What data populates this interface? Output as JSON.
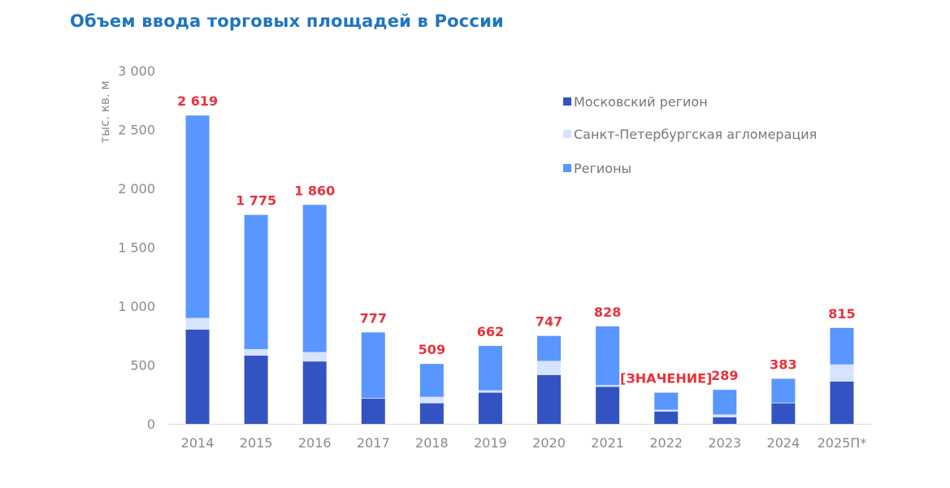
{
  "title": "Объем ввода торговых площадей в России",
  "chart_data": {
    "type": "bar",
    "stacked": true,
    "title": "Объем ввода торговых площадей в России",
    "ylabel": "тыс. кв. м",
    "ylim": [
      0,
      3000
    ],
    "yticks": [
      0,
      500,
      1000,
      1500,
      2000,
      2500,
      3000
    ],
    "ytick_labels": [
      "0",
      "500",
      "1 000",
      "1 500",
      "2 000",
      "2 500",
      "3 000"
    ],
    "categories": [
      "2014",
      "2015",
      "2016",
      "2017",
      "2018",
      "2019",
      "2020",
      "2021",
      "2022",
      "2023",
      "2024",
      "2025П*"
    ],
    "series": [
      {
        "name": "Московский регион",
        "color": "#3353c2",
        "values": [
          800,
          580,
          530,
          215,
          175,
          265,
          415,
          315,
          105,
          55,
          175,
          360
        ]
      },
      {
        "name": "Санкт-Петербургская агломерация",
        "color": "#d6e4ff",
        "values": [
          100,
          55,
          80,
          5,
          55,
          20,
          120,
          15,
          15,
          25,
          5,
          145
        ]
      },
      {
        "name": "Регионы",
        "color": "#5996ff",
        "values": [
          1719,
          1140,
          1250,
          557,
          279,
          377,
          212,
          498,
          145,
          209,
          203,
          310
        ]
      }
    ],
    "totals": [
      "2 619",
      "1 775",
      "1 860",
      "777",
      "509",
      "662",
      "747",
      "828",
      "[ЗНАЧЕНИЕ]",
      "289",
      "383",
      "815"
    ],
    "legend_position": "top-right",
    "grid": false
  }
}
